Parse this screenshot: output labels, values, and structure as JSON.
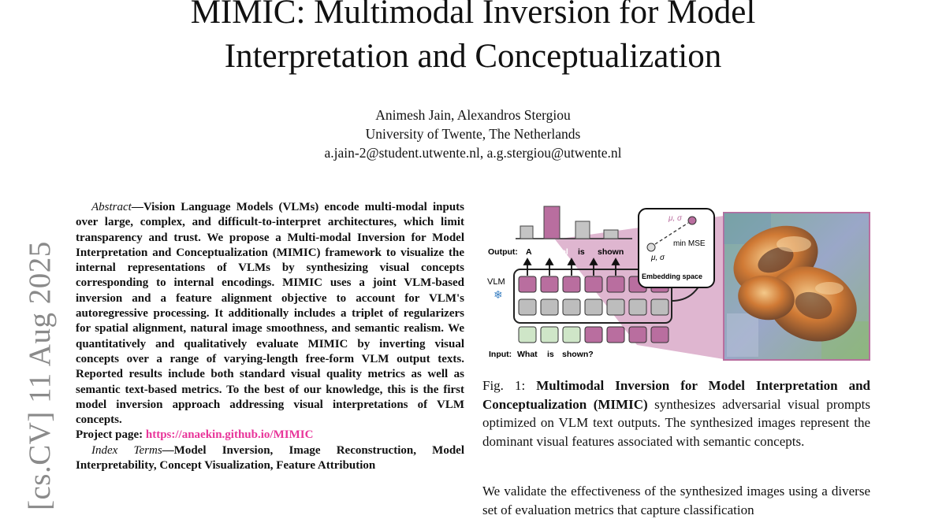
{
  "title_line1": "MIMIC: Multimodal Inversion for Model",
  "title_line2": "Interpretation and Conceptualization",
  "authors": "Animesh Jain, Alexandros Stergiou",
  "affiliation": "University of Twente, The Netherlands",
  "emails": "a.jain-2@student.utwente.nl, a.g.stergiou@utwente.nl",
  "arxiv_stamp": "[cs.CV]  11 Aug 2025",
  "abstract": {
    "label": "Abstract",
    "text": "—Vision Language Models (VLMs) encode multi-modal inputs over large, complex, and difficult-to-interpret architectures, which limit transparency and trust. We propose a Multi-modal Inversion for Model Interpretation and Conceptualization (MIMIC) framework to visualize the internal representations of VLMs by synthesizing visual concepts corresponding to internal encodings. MIMIC uses a joint VLM-based inversion and a feature alignment objective to account for VLM's autoregressive processing. It additionally includes a triplet of regularizers for spatial alignment, natural image smoothness, and semantic realism. We quantitatively and qualitatively evaluate MIMIC by inverting visual concepts over a range of varying-length free-form VLM output texts. Reported results include both standard visual quality metrics as well as semantic text-based metrics. To the best of our knowledge, this is the first model inversion approach addressing visual interpretations of VLM concepts.",
    "project_label": "Project page: ",
    "project_link": "https://anaekin.github.io/MIMIC"
  },
  "index_terms": {
    "label": "Index Terms",
    "text": "—Model Inversion, Image Reconstruction, Model Interpretability, Concept Visualization, Feature Attribution"
  },
  "figure": {
    "output_label": "Output:",
    "output_tokens": [
      "A",
      "pretzel",
      "is",
      "shown"
    ],
    "vlm_label": "VLM",
    "input_label": "Input:",
    "input_tokens": [
      "What",
      "is",
      "shown?"
    ],
    "mu_sigma_top": "μ, σ",
    "mu_sigma_bottom": "μ, σ",
    "min_mse": "min MSE",
    "embedding_label": "Embedding space",
    "snowflake_icon": "❄",
    "colors": {
      "accent": "#b96e9f",
      "accent_light": "#d9a9c8",
      "grey": "#bdbdbd",
      "green": "#cfe6c8"
    }
  },
  "caption": {
    "prefix": "Fig. 1: ",
    "bold": "Multimodal Inversion for Model Interpretation and Conceptualization (MIMIC)",
    "rest": " synthesizes adversarial visual prompts optimized on VLM text outputs. The synthesized images represent the dominant visual features associated with semantic concepts."
  },
  "body": "We validate the effectiveness of the synthesized images using a diverse set of evaluation metrics that capture classification"
}
